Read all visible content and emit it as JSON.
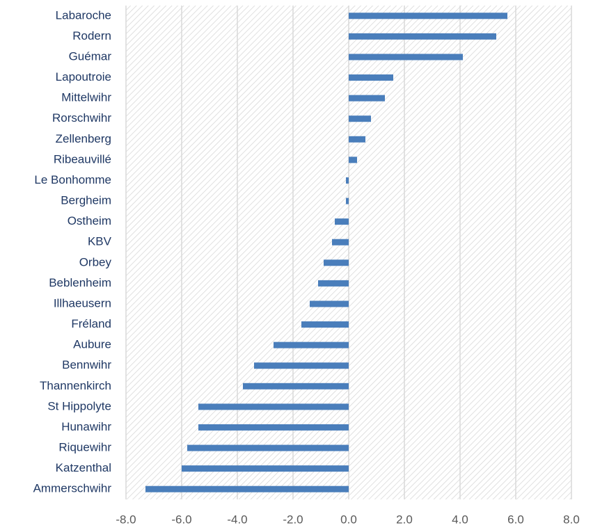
{
  "chart_data": {
    "type": "barh",
    "categories": [
      "Labaroche",
      "Rodern",
      "Guémar",
      "Lapoutroie",
      "Mittelwihr",
      "Rorschwihr",
      "Zellenberg",
      "Ribeauvillé",
      "Le Bonhomme",
      "Bergheim",
      "Ostheim",
      "KBV",
      "Orbey",
      "Beblenheim",
      "Illhaeusern",
      "Fréland",
      "Aubure",
      "Bennwihr",
      "Thannenkirch",
      "St Hippolyte",
      "Hunawihr",
      "Riquewihr",
      "Katzenthal",
      "Ammerschwihr"
    ],
    "values": [
      5.7,
      5.3,
      4.1,
      1.6,
      1.3,
      0.8,
      0.6,
      0.3,
      -0.1,
      -0.1,
      -0.5,
      -0.6,
      -0.9,
      -1.1,
      -1.4,
      -1.7,
      -2.7,
      -3.4,
      -3.8,
      -5.4,
      -5.4,
      -5.8,
      -6.0,
      -7.3
    ],
    "color": "#4a7ebb",
    "xlim": [
      -8,
      8
    ],
    "xticks": [
      {
        "value": -8,
        "label": "-8.0"
      },
      {
        "value": -6,
        "label": "-6.0"
      },
      {
        "value": -4,
        "label": "-4.0"
      },
      {
        "value": -2,
        "label": "-2.0"
      },
      {
        "value": 0,
        "label": "0.0"
      },
      {
        "value": 2,
        "label": "2.0"
      },
      {
        "value": 4,
        "label": "4.0"
      },
      {
        "value": 6,
        "label": "6.0"
      },
      {
        "value": 8,
        "label": "8.0"
      }
    ],
    "grid": true
  }
}
